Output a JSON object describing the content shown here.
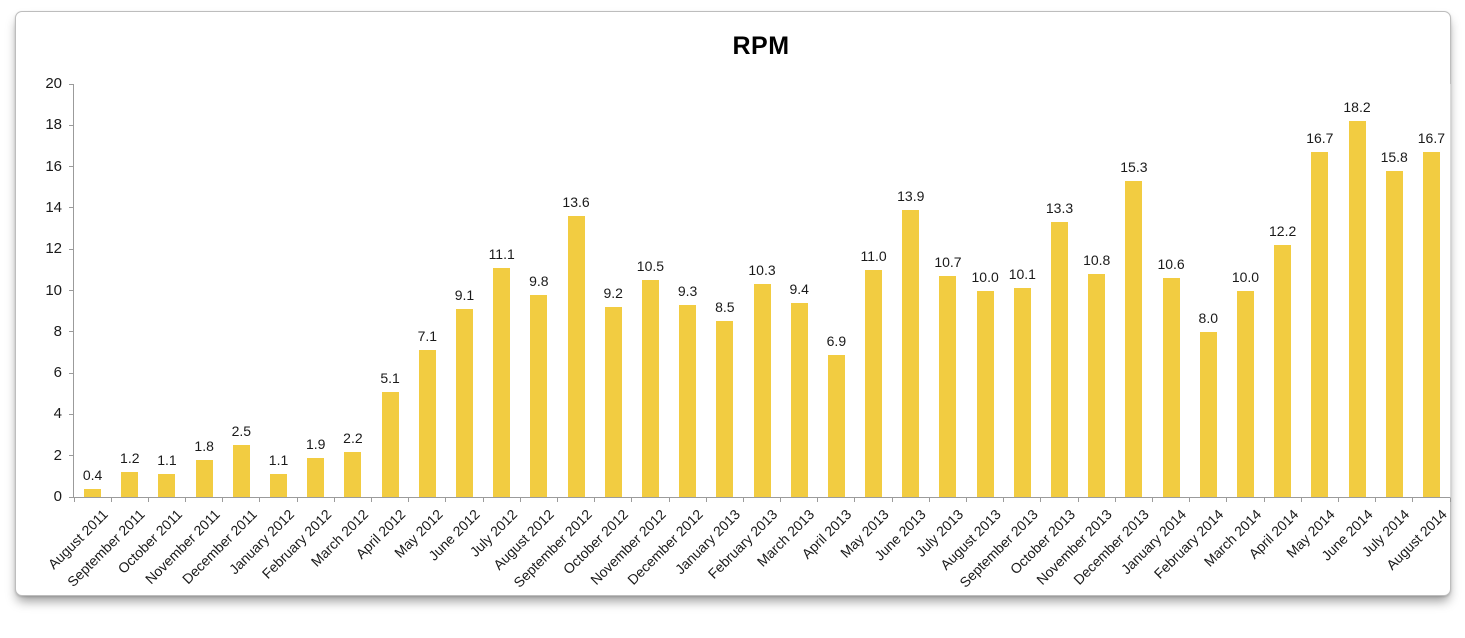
{
  "chart_data": {
    "type": "bar",
    "title": "RPM",
    "xlabel": "",
    "ylabel": "",
    "ylim": [
      0,
      20
    ],
    "ytick_interval": 2,
    "yticks": [
      0,
      2,
      4,
      6,
      8,
      10,
      12,
      14,
      16,
      18,
      20
    ],
    "grid": "off",
    "legend": "none",
    "bar_color": "#F2CC41",
    "axis_color": "#9B9B9B",
    "text_color": "#1A1A1A",
    "categories": [
      "August 2011",
      "September 2011",
      "October 2011",
      "November 2011",
      "December 2011",
      "January 2012",
      "February 2012",
      "March 2012",
      "April 2012",
      "May 2012",
      "June 2012",
      "July 2012",
      "August 2012",
      "September 2012",
      "October 2012",
      "November 2012",
      "December 2012",
      "January 2013",
      "February 2013",
      "March 2013",
      "April 2013",
      "May 2013",
      "June 2013",
      "July 2013",
      "August 2013",
      "September 2013",
      "October 2013",
      "November 2013",
      "December 2013",
      "January 2014",
      "February 2014",
      "March 2014",
      "April 2014",
      "May 2014",
      "June 2014",
      "July 2014",
      "August 2014"
    ],
    "values": [
      0.4,
      1.2,
      1.1,
      1.8,
      2.5,
      1.1,
      1.9,
      2.2,
      5.1,
      7.1,
      9.1,
      11.1,
      9.8,
      13.6,
      9.2,
      10.5,
      9.3,
      8.5,
      10.3,
      9.4,
      6.9,
      11.0,
      13.9,
      10.7,
      10.0,
      10.1,
      13.3,
      10.8,
      15.3,
      10.6,
      8.0,
      10.0,
      12.2,
      16.7,
      18.2,
      15.8,
      16.7
    ],
    "value_labels": [
      "0.4",
      "1.2",
      "1.1",
      "1.8",
      "2.5",
      "1.1",
      "1.9",
      "2.2",
      "5.1",
      "7.1",
      "9.1",
      "11.1",
      "9.8",
      "13.6",
      "9.2",
      "10.5",
      "9.3",
      "8.5",
      "10.3",
      "9.4",
      "6.9",
      "11.0",
      "13.9",
      "10.7",
      "10.0",
      "10.1",
      "13.3",
      "10.8",
      "15.3",
      "10.6",
      "8.0",
      "10.0",
      "12.2",
      "16.7",
      "18.2",
      "15.8",
      "16.7"
    ]
  }
}
